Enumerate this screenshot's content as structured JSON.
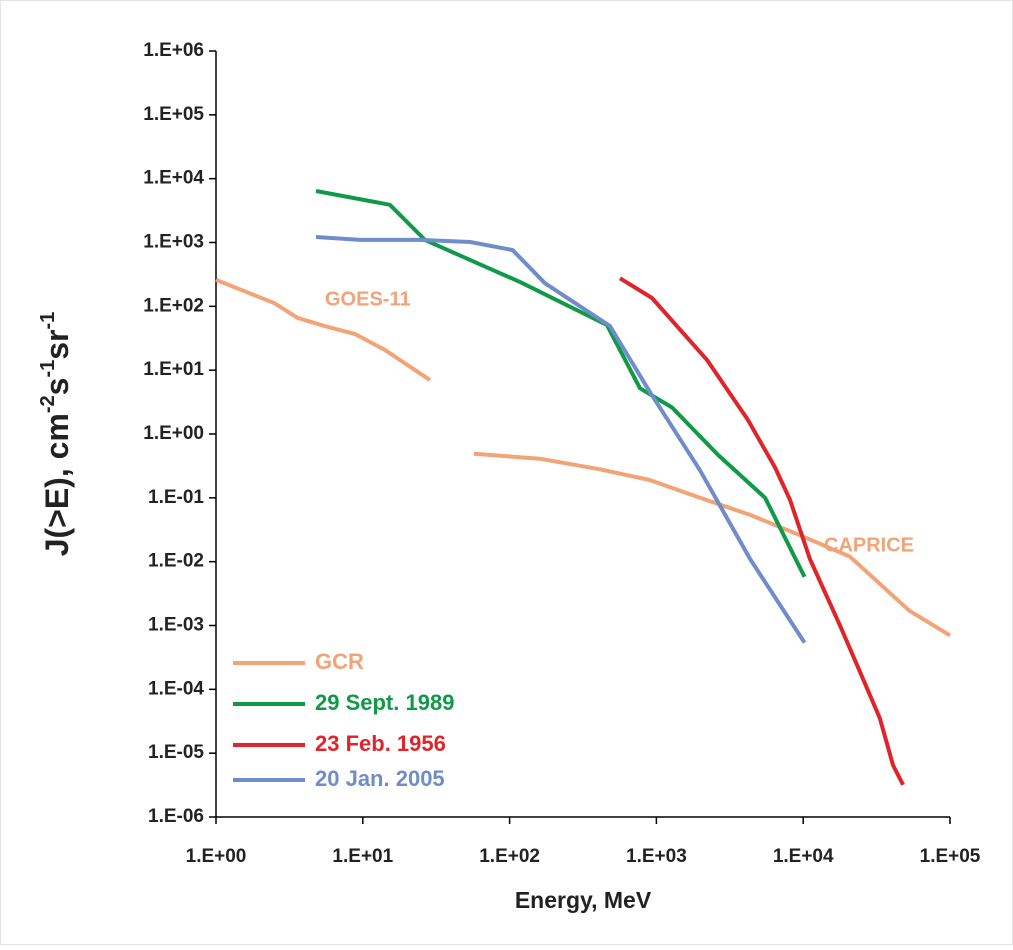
{
  "chart_data": {
    "type": "line",
    "log_x": true,
    "log_y": true,
    "grid": false,
    "xlabel": "Energy, MeV",
    "ylabel": [
      {
        "text": "J(>E),  cm",
        "sup": false
      },
      {
        "text": "-2",
        "sup": true
      },
      {
        "text": "s",
        "sup": false
      },
      {
        "text": "-1",
        "sup": true
      },
      {
        "text": "sr",
        "sup": false
      },
      {
        "text": "-1",
        "sup": true
      }
    ],
    "xlim": [
      1,
      100000
    ],
    "ylim": [
      1e-06,
      1000000
    ],
    "xticks": [
      {
        "value": 1,
        "label": "1.E+00"
      },
      {
        "value": 10,
        "label": "1.E+01"
      },
      {
        "value": 100,
        "label": "1.E+02"
      },
      {
        "value": 1000,
        "label": "1.E+03"
      },
      {
        "value": 10000,
        "label": "1.E+04"
      },
      {
        "value": 100000,
        "label": "1.E+05"
      }
    ],
    "yticks": [
      {
        "value": 1e-06,
        "label": "1.E-06"
      },
      {
        "value": 1e-05,
        "label": "1.E-05"
      },
      {
        "value": 0.0001,
        "label": "1.E-04"
      },
      {
        "value": 0.001,
        "label": "1.E-03"
      },
      {
        "value": 0.01,
        "label": "1.E-02"
      },
      {
        "value": 0.1,
        "label": "1.E-01"
      },
      {
        "value": 1,
        "label": "1.E+00"
      },
      {
        "value": 10,
        "label": "1.E+01"
      },
      {
        "value": 100,
        "label": "1.E+02"
      },
      {
        "value": 1000,
        "label": "1.E+03"
      },
      {
        "value": 10000,
        "label": "1.E+04"
      },
      {
        "value": 100000,
        "label": "1.E+05"
      },
      {
        "value": 1000000,
        "label": "1.E+06"
      }
    ],
    "series": [
      {
        "name": "GCR",
        "color": "#f2a377",
        "x": [
          1,
          2.5,
          3.6,
          5.5,
          8.8,
          14,
          28.7,
          null,
          57,
          160,
          413,
          900,
          1980,
          4350,
          9500,
          20800,
          53000,
          100000
        ],
        "values": [
          260,
          112,
          66,
          49,
          37,
          21,
          7,
          null,
          0.49,
          0.41,
          0.28,
          0.19,
          0.1,
          0.054,
          0.026,
          0.012,
          0.0017,
          0.0007
        ]
      },
      {
        "name": "29 Sept. 1989",
        "color": "#0f9a48",
        "x": [
          4.8,
          15.3,
          26.5,
          54,
          118,
          460,
          773,
          1280,
          2630,
          5500,
          10200
        ],
        "values": [
          6400,
          3900,
          1100,
          530,
          240,
          51,
          5.2,
          2.6,
          0.47,
          0.1,
          0.0058
        ]
      },
      {
        "name": "23 Feb. 1956",
        "color": "#e0242b",
        "x": [
          565,
          933,
          1450,
          2210,
          4200,
          6430,
          8130,
          11100,
          17800,
          25100,
          33300,
          40900,
          47900
        ],
        "values": [
          275,
          135,
          43,
          14.5,
          1.66,
          0.3,
          0.093,
          0.011,
          0.001,
          0.00016,
          3.5e-05,
          6.5e-06,
          3.2e-06
        ]
      },
      {
        "name": "20 Jan. 2005",
        "color": "#6f8ccb",
        "x": [
          4.8,
          9.6,
          24.5,
          54,
          105,
          174,
          483,
          900,
          1980,
          4350,
          10200
        ],
        "values": [
          1220,
          1100,
          1100,
          1020,
          760,
          230,
          49,
          4.6,
          0.27,
          0.011,
          0.00054
        ]
      }
    ],
    "annotations": [
      {
        "text": "GOES-11",
        "color": "#f2a377"
      },
      {
        "text": "CAPRICE",
        "color": "#f2a377"
      }
    ]
  }
}
